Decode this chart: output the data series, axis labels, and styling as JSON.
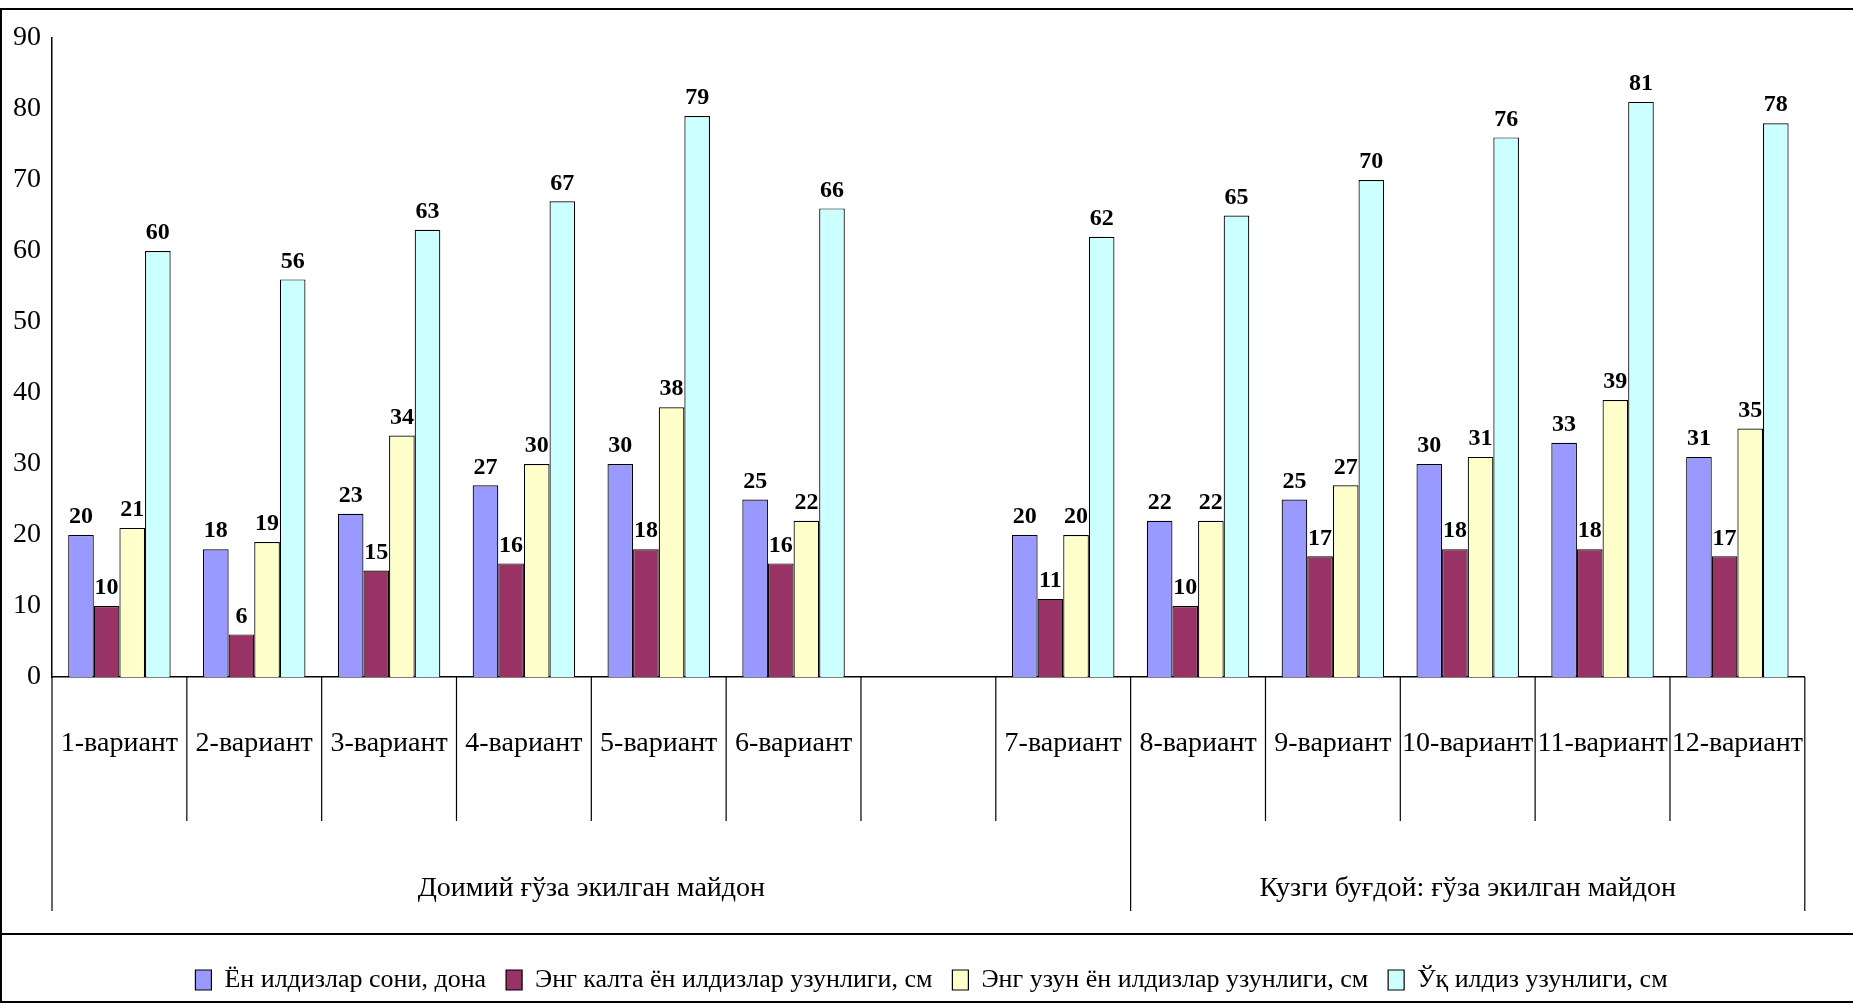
{
  "chart_data": {
    "type": "bar",
    "categories": [
      "1-вариант",
      "2-вариант",
      "3-вариант",
      "4-вариант",
      "5-вариант",
      "6-вариант",
      null,
      "7-вариант",
      "8-вариант",
      "9-вариант",
      "10-вариант",
      "11-вариант",
      "12-вариант"
    ],
    "series": [
      {
        "name": "Ён илдизлар сони, дона",
        "color": "#9999ff",
        "values": [
          20,
          18,
          23,
          27,
          30,
          25,
          null,
          20,
          22,
          25,
          30,
          33,
          31
        ]
      },
      {
        "name": "Энг калта ён илдизлар узунлиги, см",
        "color": "#993366",
        "values": [
          10,
          6,
          15,
          16,
          18,
          16,
          null,
          11,
          10,
          17,
          18,
          18,
          17
        ]
      },
      {
        "name": "Энг узун ён илдизлар узунлиги, см",
        "color": "#ffffcc",
        "values": [
          21,
          19,
          34,
          30,
          38,
          22,
          null,
          20,
          22,
          27,
          31,
          39,
          35
        ]
      },
      {
        "name": "Ўқ илдиз узунлиги, см",
        "color": "#ccffff",
        "values": [
          60,
          56,
          63,
          67,
          79,
          66,
          null,
          62,
          65,
          70,
          76,
          81,
          78
        ]
      }
    ],
    "ylim": [
      0,
      90
    ],
    "yticks": [
      0,
      10,
      20,
      30,
      40,
      50,
      60,
      70,
      80,
      90
    ],
    "grid": false,
    "legend": "bottom",
    "data_labels": true,
    "annotations": [
      "Доимий ғўза экилган майдон",
      "Кузги буғдой: ғўза экилган майдон"
    ]
  }
}
